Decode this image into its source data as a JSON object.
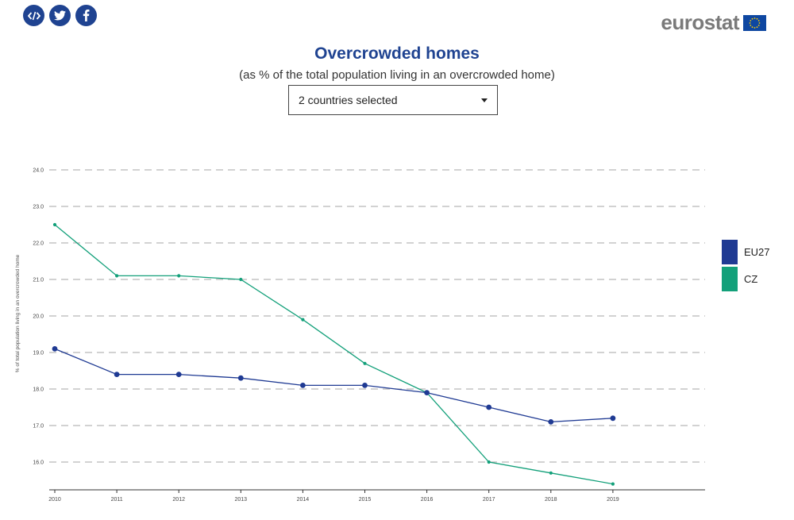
{
  "share": {
    "embed_icon": "code-icon",
    "twitter_icon": "twitter-icon",
    "facebook_icon": "facebook-icon"
  },
  "logo": {
    "text": "eurostat",
    "flag_icon": "eu-flag-icon"
  },
  "header": {
    "title": "Overcrowded homes",
    "subtitle": "(as % of the total population living in an overcrowded home)"
  },
  "selector": {
    "value": "2 countries selected",
    "icon": "chevron-down-icon"
  },
  "chart_data": {
    "type": "line",
    "title": "Overcrowded homes",
    "subtitle": "(as % of the total population living in an overcrowded home)",
    "ylabel": "% of total population living in an overcrowded home",
    "xlabel": "",
    "x": [
      "2010",
      "2011",
      "2012",
      "2013",
      "2014",
      "2015",
      "2016",
      "2017",
      "2018",
      "2019"
    ],
    "ylim": [
      15.3,
      24.0
    ],
    "yticks": [
      "16.0",
      "17.0",
      "18.0",
      "19.0",
      "20.0",
      "21.0",
      "22.0",
      "23.0",
      "24.0"
    ],
    "grid": true,
    "legend_position": "right",
    "series": [
      {
        "name": "EU27",
        "color": "#1f3a93",
        "values": [
          19.1,
          18.4,
          18.4,
          18.3,
          18.1,
          18.1,
          17.9,
          17.5,
          17.1,
          17.2
        ]
      },
      {
        "name": "CZ",
        "color": "#13a07a",
        "values": [
          22.5,
          21.1,
          21.1,
          21.0,
          19.9,
          18.7,
          17.9,
          16.0,
          15.7,
          15.4
        ]
      }
    ]
  }
}
